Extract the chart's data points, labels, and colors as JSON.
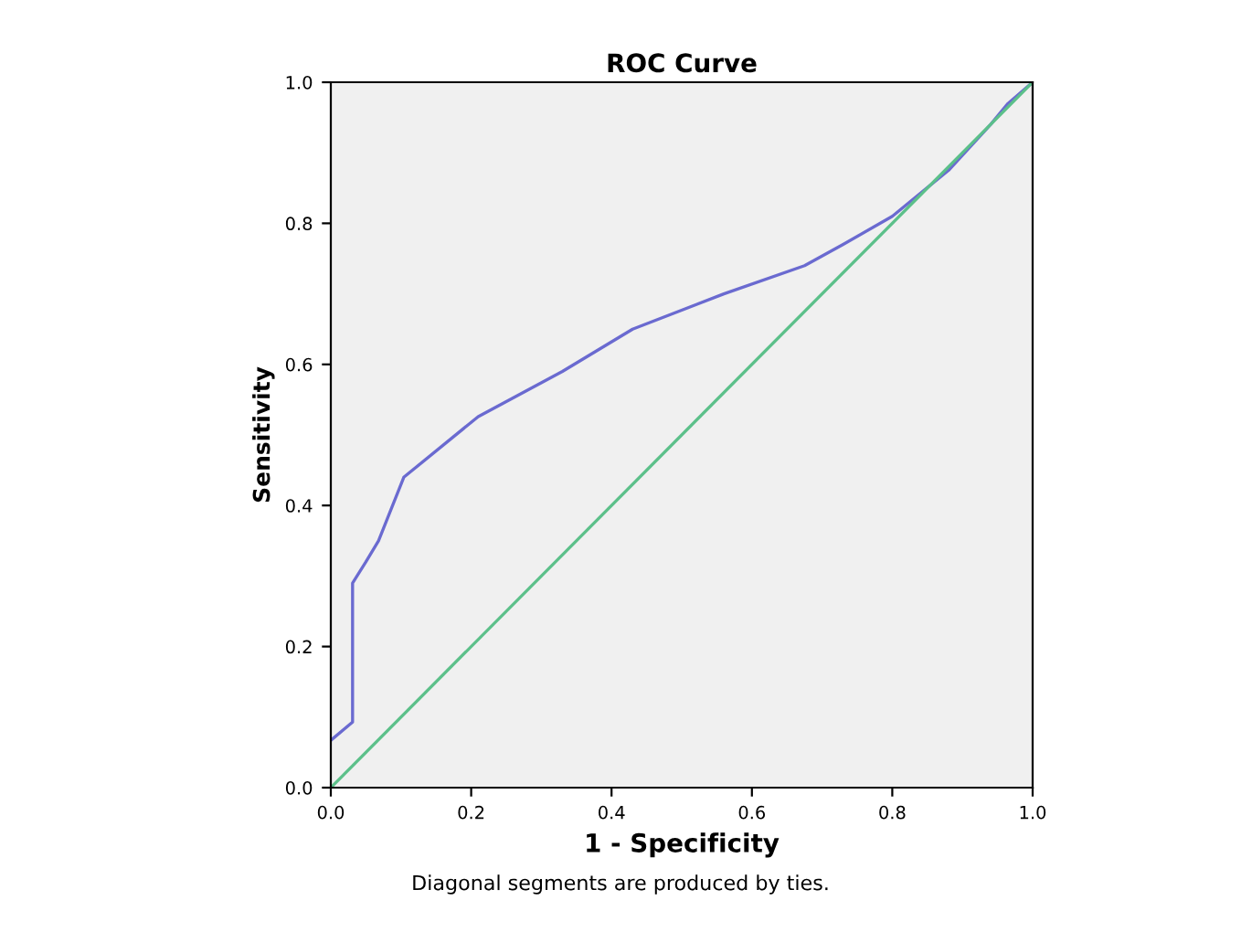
{
  "chart_data": {
    "type": "line",
    "title": "ROC Curve",
    "xlabel": "1 - Specificity",
    "ylabel": "Sensitivity",
    "annotations": [
      "Diagonal segments are produced by ties."
    ],
    "xlim": [
      0,
      1
    ],
    "ylim": [
      0,
      1
    ],
    "xticks": [
      {
        "value": 0,
        "label": "0.0"
      },
      {
        "value": 0.2,
        "label": "0.2"
      },
      {
        "value": 0.4,
        "label": "0.4"
      },
      {
        "value": 0.6,
        "label": "0.6"
      },
      {
        "value": 0.8,
        "label": "0.8"
      },
      {
        "value": 1,
        "label": "1.0"
      }
    ],
    "yticks": [
      {
        "value": 0,
        "label": "0.0"
      },
      {
        "value": 0.2,
        "label": "0.2"
      },
      {
        "value": 0.4,
        "label": "0.4"
      },
      {
        "value": 0.6,
        "label": "0.6"
      },
      {
        "value": 0.8,
        "label": "0.8"
      },
      {
        "value": 1,
        "label": "1.0"
      }
    ],
    "grid": false,
    "legend": false,
    "series": [
      {
        "color": "#6a6ad0",
        "x": [
          0,
          0.031,
          0.031,
          0.05,
          0.068,
          0.104,
          0.21,
          0.33,
          0.43,
          0.56,
          0.675,
          0.73,
          0.8,
          0.88,
          0.94,
          0.965,
          1
        ],
        "values": [
          0.067,
          0.093,
          0.29,
          0.32,
          0.35,
          0.44,
          0.526,
          0.59,
          0.65,
          0.7,
          0.74,
          0.77,
          0.81,
          0.875,
          0.94,
          0.97,
          1
        ]
      },
      {
        "color": "#5cc08a",
        "x": [
          0,
          1
        ],
        "values": [
          0,
          1
        ]
      }
    ]
  }
}
